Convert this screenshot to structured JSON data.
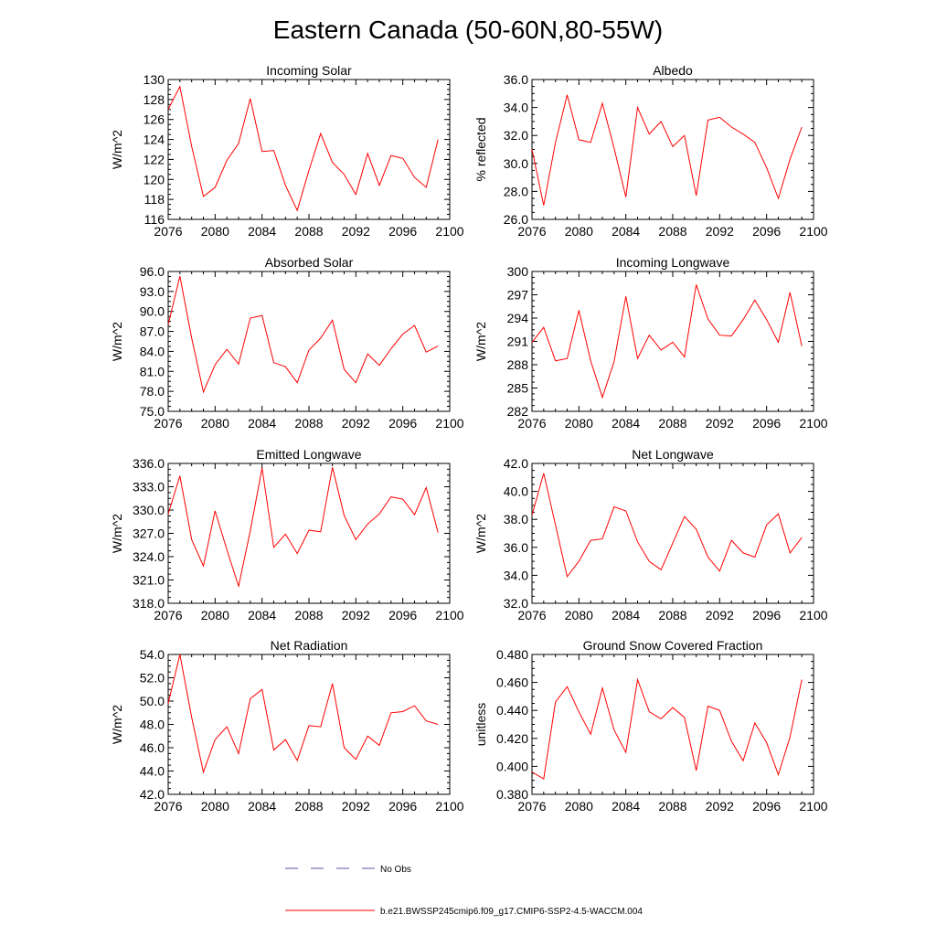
{
  "figure": {
    "title": "Eastern Canada (50-60N,80-55W)",
    "line_color": "#ff0000",
    "obs_color": "#5555aa"
  },
  "legend": {
    "obs_label": "No Obs",
    "model_label": "b.e21.BWSSP245cmip6.f09_g17.CMIP6-SSP2-4.5-WACCM.004"
  },
  "chart_data": [
    {
      "type": "line",
      "title": "Incoming Solar",
      "ylabel": "W/m^2",
      "xlim": [
        2076,
        2100
      ],
      "ylim": [
        116,
        130
      ],
      "xticks": [
        "2076",
        "2080",
        "2084",
        "2088",
        "2092",
        "2096",
        "2100"
      ],
      "yticks": [
        "116",
        "118",
        "120",
        "122",
        "124",
        "126",
        "128",
        "130"
      ],
      "x": [
        2076,
        2077,
        2078,
        2079,
        2080,
        2081,
        2082,
        2083,
        2084,
        2085,
        2086,
        2087,
        2088,
        2089,
        2090,
        2091,
        2092,
        2093,
        2094,
        2095,
        2096,
        2097,
        2098,
        2099
      ],
      "values": [
        127.0,
        129.3,
        123.3,
        118.3,
        119.2,
        121.9,
        123.6,
        128.1,
        122.8,
        122.9,
        119.4,
        116.9,
        120.9,
        124.6,
        121.7,
        120.5,
        118.5,
        122.6,
        119.4,
        122.4,
        122.1,
        120.2,
        119.2,
        124.0
      ]
    },
    {
      "type": "line",
      "title": "Albedo",
      "ylabel": "% reflected",
      "xlim": [
        2076,
        2100
      ],
      "ylim": [
        26,
        36
      ],
      "xticks": [
        "2076",
        "2080",
        "2084",
        "2088",
        "2092",
        "2096",
        "2100"
      ],
      "yticks": [
        "26.0",
        "28.0",
        "30.0",
        "32.0",
        "34.0",
        "36.0"
      ],
      "x": [
        2076,
        2077,
        2078,
        2079,
        2080,
        2081,
        2082,
        2083,
        2084,
        2085,
        2086,
        2087,
        2088,
        2089,
        2090,
        2091,
        2092,
        2093,
        2094,
        2095,
        2096,
        2097,
        2098,
        2099
      ],
      "values": [
        31.0,
        27.0,
        31.5,
        34.9,
        31.7,
        31.5,
        34.3,
        31.1,
        27.6,
        34.0,
        32.1,
        33.0,
        31.2,
        32.0,
        27.7,
        33.1,
        33.3,
        32.6,
        32.1,
        31.5,
        29.7,
        27.5,
        30.3,
        32.6
      ]
    },
    {
      "type": "line",
      "title": "Absorbed Solar",
      "ylabel": "W/m^2",
      "xlim": [
        2076,
        2100
      ],
      "ylim": [
        75,
        96
      ],
      "xticks": [
        "2076",
        "2080",
        "2084",
        "2088",
        "2092",
        "2096",
        "2100"
      ],
      "yticks": [
        "75.0",
        "78.0",
        "81.0",
        "84.0",
        "87.0",
        "90.0",
        "93.0",
        "96.0"
      ],
      "x": [
        2076,
        2077,
        2078,
        2079,
        2080,
        2081,
        2082,
        2083,
        2084,
        2085,
        2086,
        2087,
        2088,
        2089,
        2090,
        2091,
        2092,
        2093,
        2094,
        2095,
        2096,
        2097,
        2098,
        2099
      ],
      "values": [
        88.0,
        95.3,
        86.0,
        77.9,
        82.0,
        84.3,
        82.1,
        89.0,
        89.4,
        82.3,
        81.7,
        79.3,
        84.2,
        86.0,
        88.7,
        81.3,
        79.3,
        83.6,
        81.9,
        84.4,
        86.6,
        87.9,
        83.9,
        84.8
      ]
    },
    {
      "type": "line",
      "title": "Incoming Longwave",
      "ylabel": "W/m^2",
      "xlim": [
        2076,
        2100
      ],
      "ylim": [
        282,
        300
      ],
      "xticks": [
        "2076",
        "2080",
        "2084",
        "2088",
        "2092",
        "2096",
        "2100"
      ],
      "yticks": [
        "282",
        "285",
        "288",
        "291",
        "294",
        "297",
        "300"
      ],
      "x": [
        2076,
        2077,
        2078,
        2079,
        2080,
        2081,
        2082,
        2083,
        2084,
        2085,
        2086,
        2087,
        2088,
        2089,
        2090,
        2091,
        2092,
        2093,
        2094,
        2095,
        2096,
        2097,
        2098,
        2099
      ],
      "values": [
        290.9,
        292.8,
        288.5,
        288.8,
        295.0,
        288.5,
        283.8,
        288.4,
        296.8,
        288.8,
        291.8,
        289.9,
        290.9,
        289.0,
        298.3,
        293.9,
        291.8,
        291.7,
        293.8,
        296.3,
        293.8,
        290.9,
        297.3,
        290.4
      ]
    },
    {
      "type": "line",
      "title": "Emitted Longwave",
      "ylabel": "W/m^2",
      "xlim": [
        2076,
        2100
      ],
      "ylim": [
        318,
        336
      ],
      "xticks": [
        "2076",
        "2080",
        "2084",
        "2088",
        "2092",
        "2096",
        "2100"
      ],
      "yticks": [
        "318.0",
        "321.0",
        "324.0",
        "327.0",
        "330.0",
        "333.0",
        "336.0"
      ],
      "x": [
        2076,
        2077,
        2078,
        2079,
        2080,
        2081,
        2082,
        2083,
        2084,
        2085,
        2086,
        2087,
        2088,
        2089,
        2090,
        2091,
        2092,
        2093,
        2094,
        2095,
        2096,
        2097,
        2098,
        2099
      ],
      "values": [
        329.5,
        334.4,
        326.2,
        322.8,
        329.9,
        324.9,
        320.2,
        327.3,
        335.4,
        325.2,
        326.9,
        324.4,
        327.4,
        327.2,
        335.5,
        329.3,
        326.2,
        328.2,
        329.5,
        331.7,
        331.4,
        329.4,
        332.9,
        327.1
      ]
    },
    {
      "type": "line",
      "title": "Net Longwave",
      "ylabel": "W/m^2",
      "xlim": [
        2076,
        2100
      ],
      "ylim": [
        32,
        42
      ],
      "xticks": [
        "2076",
        "2080",
        "2084",
        "2088",
        "2092",
        "2096",
        "2100"
      ],
      "yticks": [
        "32.0",
        "34.0",
        "36.0",
        "38.0",
        "40.0",
        "42.0"
      ],
      "x": [
        2076,
        2077,
        2078,
        2079,
        2080,
        2081,
        2082,
        2083,
        2084,
        2085,
        2086,
        2087,
        2088,
        2089,
        2090,
        2091,
        2092,
        2093,
        2094,
        2095,
        2096,
        2097,
        2098,
        2099
      ],
      "values": [
        38.3,
        41.3,
        37.6,
        33.9,
        35.0,
        36.5,
        36.6,
        38.9,
        38.6,
        36.4,
        35.0,
        34.4,
        36.3,
        38.2,
        37.3,
        35.3,
        34.3,
        36.5,
        35.6,
        35.3,
        37.6,
        38.4,
        35.6,
        36.7
      ]
    },
    {
      "type": "line",
      "title": "Net Radiation",
      "ylabel": "W/m^2",
      "xlim": [
        2076,
        2100
      ],
      "ylim": [
        42,
        54
      ],
      "xticks": [
        "2076",
        "2080",
        "2084",
        "2088",
        "2092",
        "2096",
        "2100"
      ],
      "yticks": [
        "42.0",
        "44.0",
        "46.0",
        "48.0",
        "50.0",
        "52.0",
        "54.0"
      ],
      "x": [
        2076,
        2077,
        2078,
        2079,
        2080,
        2081,
        2082,
        2083,
        2084,
        2085,
        2086,
        2087,
        2088,
        2089,
        2090,
        2091,
        2092,
        2093,
        2094,
        2095,
        2096,
        2097,
        2098,
        2099
      ],
      "values": [
        49.8,
        54.0,
        48.6,
        43.9,
        46.7,
        47.8,
        45.5,
        50.2,
        51.0,
        45.8,
        46.7,
        44.9,
        47.9,
        47.8,
        51.5,
        46.0,
        45.0,
        47.0,
        46.2,
        49.0,
        49.1,
        49.6,
        48.3,
        48.0
      ]
    },
    {
      "type": "line",
      "title": "Ground Snow Covered Fraction",
      "ylabel": "unitless",
      "xlim": [
        2076,
        2100
      ],
      "ylim": [
        0.38,
        0.48
      ],
      "xticks": [
        "2076",
        "2080",
        "2084",
        "2088",
        "2092",
        "2096",
        "2100"
      ],
      "yticks": [
        "0.380",
        "0.400",
        "0.420",
        "0.440",
        "0.460",
        "0.480"
      ],
      "x": [
        2076,
        2077,
        2078,
        2079,
        2080,
        2081,
        2082,
        2083,
        2084,
        2085,
        2086,
        2087,
        2088,
        2089,
        2090,
        2091,
        2092,
        2093,
        2094,
        2095,
        2096,
        2097,
        2098,
        2099
      ],
      "values": [
        0.396,
        0.391,
        0.446,
        0.457,
        0.439,
        0.423,
        0.456,
        0.426,
        0.41,
        0.462,
        0.439,
        0.434,
        0.442,
        0.435,
        0.397,
        0.443,
        0.44,
        0.418,
        0.404,
        0.431,
        0.417,
        0.394,
        0.421,
        0.462
      ]
    }
  ]
}
